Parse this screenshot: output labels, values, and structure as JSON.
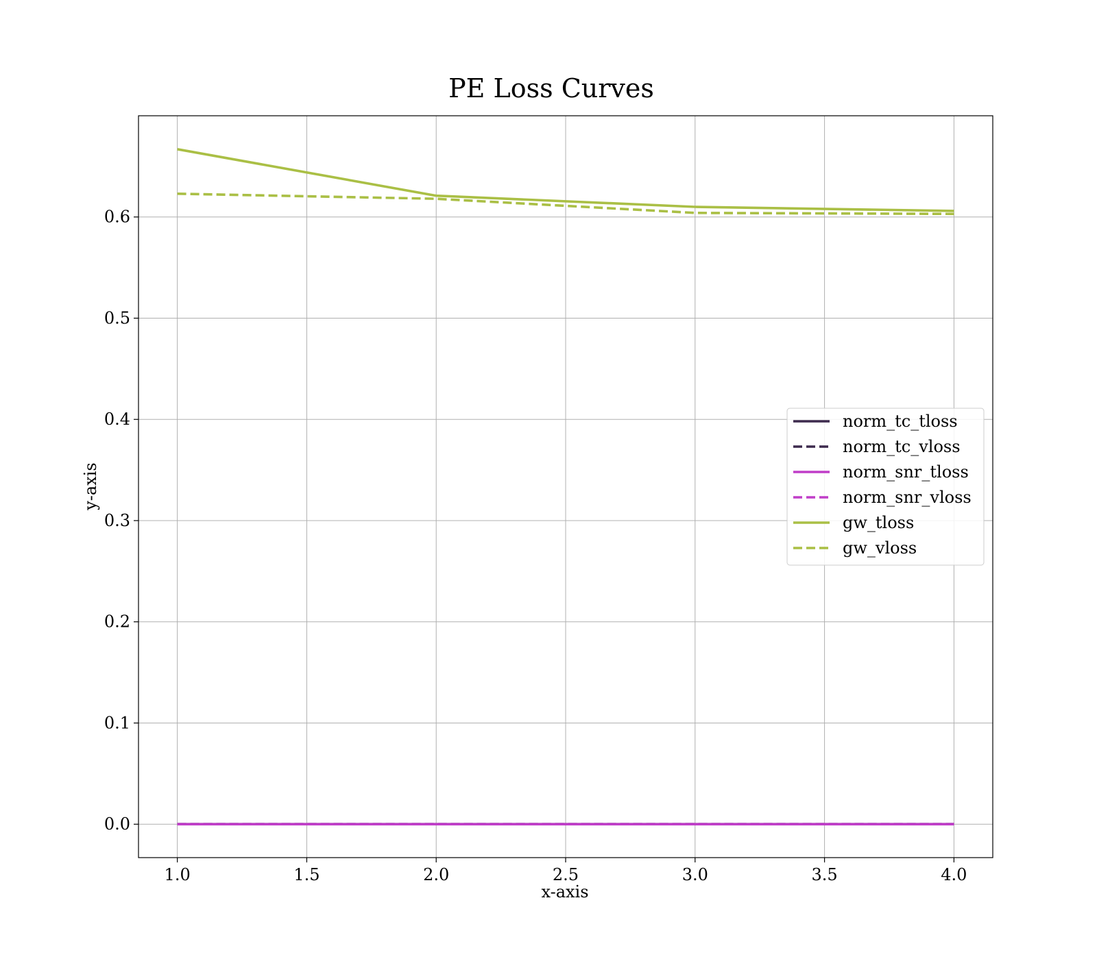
{
  "chart_data": {
    "type": "line",
    "title": "PE Loss Curves",
    "xlabel": "x-axis",
    "ylabel": "y-axis",
    "xlim": [
      0.85,
      4.15
    ],
    "ylim": [
      -0.033,
      0.7
    ],
    "xticks": [
      1.0,
      1.5,
      2.0,
      2.5,
      3.0,
      3.5,
      4.0
    ],
    "xtick_labels": [
      "1.0",
      "1.5",
      "2.0",
      "2.5",
      "3.0",
      "3.5",
      "4.0"
    ],
    "yticks": [
      0.0,
      0.1,
      0.2,
      0.3,
      0.4,
      0.5,
      0.6
    ],
    "ytick_labels": [
      "0.0",
      "0.1",
      "0.2",
      "0.3",
      "0.4",
      "0.5",
      "0.6"
    ],
    "grid": true,
    "legend_position": "center-right",
    "x": [
      1,
      2,
      3,
      4
    ],
    "series": [
      {
        "name": "norm_tc_tloss",
        "values": [
          0.0,
          0.0,
          0.0,
          0.0
        ],
        "color": "#3d2a4d",
        "style": "solid"
      },
      {
        "name": "norm_tc_vloss",
        "values": [
          0.0,
          0.0,
          0.0,
          0.0
        ],
        "color": "#3d2a4d",
        "style": "dashed"
      },
      {
        "name": "norm_snr_tloss",
        "values": [
          0.0,
          0.0,
          0.0,
          0.0
        ],
        "color": "#c03ec8",
        "style": "solid"
      },
      {
        "name": "norm_snr_vloss",
        "values": [
          0.0,
          0.0,
          0.0,
          0.0
        ],
        "color": "#c03ec8",
        "style": "dashed"
      },
      {
        "name": "gw_tloss",
        "values": [
          0.667,
          0.621,
          0.61,
          0.606
        ],
        "color": "#aabf45",
        "style": "solid"
      },
      {
        "name": "gw_vloss",
        "values": [
          0.623,
          0.618,
          0.604,
          0.603
        ],
        "color": "#aabf45",
        "style": "dashed"
      }
    ]
  }
}
